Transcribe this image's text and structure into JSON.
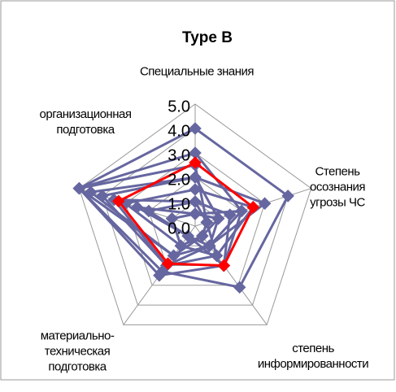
{
  "chart_data": {
    "type": "radar",
    "title": "Type B",
    "categories": [
      "Специальные знания",
      "Степень\nосознания\nугрозы ЧС",
      "степень\nинформированности",
      "материально-\nтехническая\nподготовка",
      "организационная\nподготовка"
    ],
    "ylim": [
      0,
      5
    ],
    "yticks": [
      {
        "value": 0,
        "label": "0.0"
      },
      {
        "value": 1,
        "label": "1.0"
      },
      {
        "value": 2,
        "label": "2.0"
      },
      {
        "value": 3,
        "label": "3.0"
      },
      {
        "value": 4,
        "label": "4.0"
      },
      {
        "value": 5,
        "label": "5.0"
      }
    ],
    "grid": true,
    "series": [
      {
        "color": "#6666a0",
        "values": [
          4.0,
          4.0,
          3.1,
          2.3,
          5.0
        ]
      },
      {
        "color": "#6666a0",
        "values": [
          3.0,
          2.0,
          2.0,
          2.5,
          5.0
        ]
      },
      {
        "color": "#6666a0",
        "values": [
          2.0,
          1.0,
          1.0,
          2.0,
          4.0
        ]
      },
      {
        "color": "#6666a0",
        "values": [
          1.5,
          2.5,
          1.5,
          1.0,
          3.0
        ]
      },
      {
        "color": "#6666a0",
        "values": [
          2.5,
          0.5,
          0.5,
          1.5,
          5.0
        ]
      },
      {
        "color": "#6666a0",
        "values": [
          1.0,
          1.5,
          2.0,
          0.5,
          2.0
        ]
      },
      {
        "color": "#6666a0",
        "values": [
          0.5,
          1.0,
          0.5,
          1.0,
          1.0
        ]
      },
      {
        "color": "#6666a0",
        "values": [
          2.0,
          3.0,
          1.0,
          1.5,
          4.5
        ]
      },
      {
        "color": "#6666a0",
        "values": [
          1.0,
          0.5,
          1.5,
          2.0,
          3.5
        ]
      },
      {
        "color": "#6666a0",
        "values": [
          0.5,
          2.0,
          1.0,
          0.5,
          2.5
        ]
      },
      {
        "color": "#ff0000",
        "values": [
          2.6,
          2.5,
          2.0,
          1.9,
          3.3
        ]
      }
    ]
  }
}
